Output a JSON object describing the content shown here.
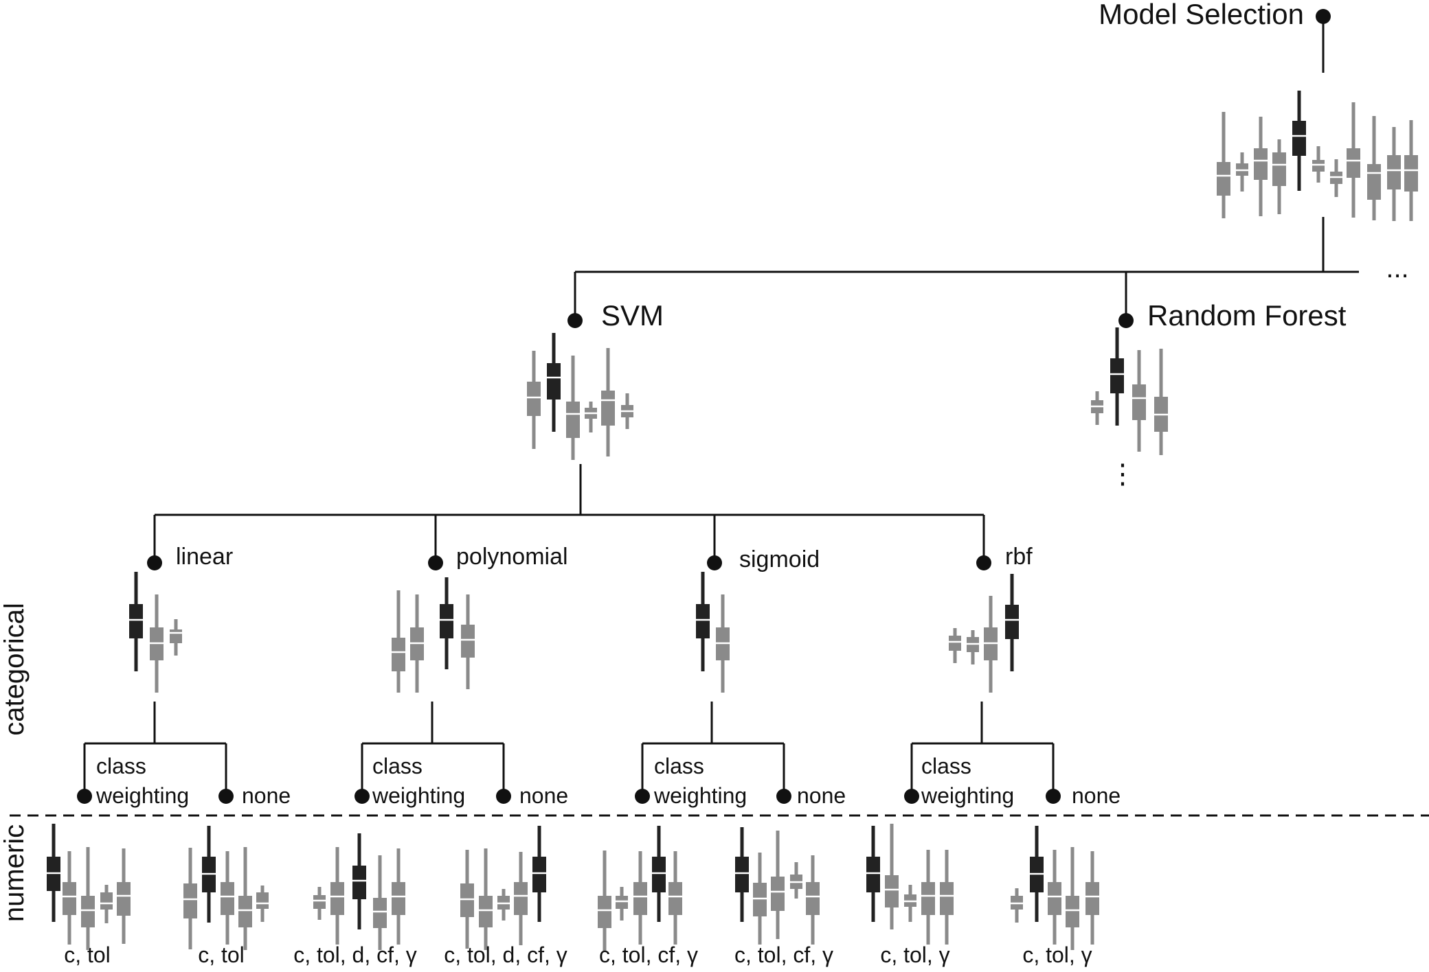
{
  "colors": {
    "line": "#111111",
    "selected_box": "#222222",
    "candidate_box": "#8a8a8a"
  },
  "nodes": {
    "root": "Model Selection",
    "svm": "SVM",
    "random_forest": "Random Forest",
    "kernels": [
      "linear",
      "polynomial",
      "sigmoid",
      "rbf"
    ],
    "class_weighting": [
      "class",
      "weighting"
    ],
    "none": "none"
  },
  "ellipsis_horizontal": "...",
  "ellipsis_vertical": "⋮",
  "side_labels": {
    "categorical": "categorical",
    "numeric": "numeric"
  },
  "param_labels": [
    "c, tol",
    "c, tol",
    "c, tol, d, cf, γ",
    "c, tol, d, cf, γ",
    "c, tol, cf, γ",
    "c, tol, cf, γ",
    "c, tol, γ",
    "c, tol, γ"
  ]
}
